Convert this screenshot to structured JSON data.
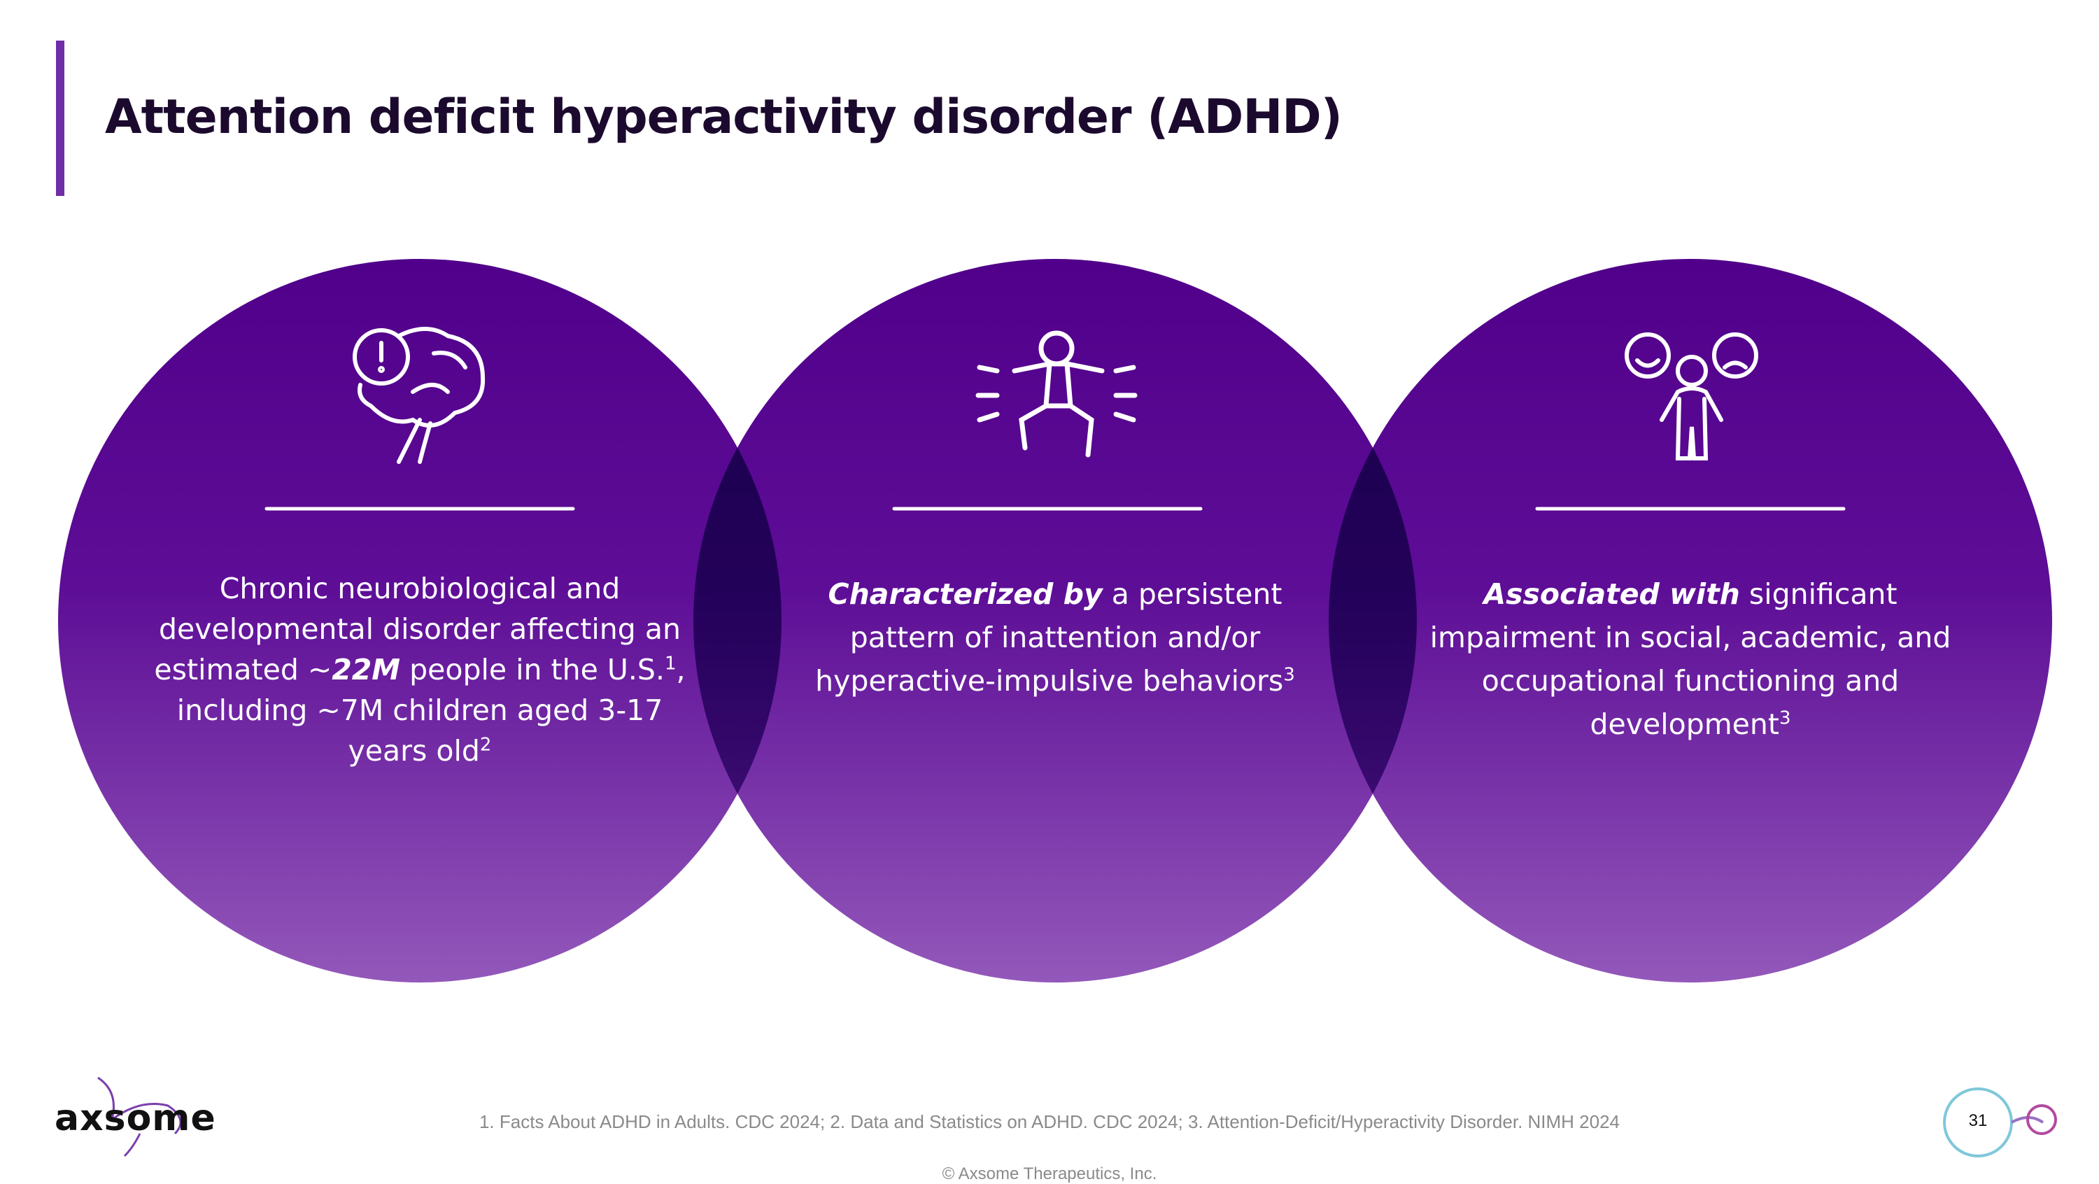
{
  "header": {
    "title": "Attention deficit hyperactivity disorder (ADHD)"
  },
  "circles": [
    {
      "segments": [
        {
          "text": "Chronic neurobiological and developmental disorder affecting an estimated ~"
        },
        {
          "text": "22M",
          "emphasis": true
        },
        {
          "text": " people in the U.S."
        },
        {
          "text": "1",
          "superscript": true
        },
        {
          "text": ", including ~7M children aged 3-17 years old"
        },
        {
          "text": "2",
          "superscript": true
        }
      ]
    },
    {
      "segments": [
        {
          "text": "Characterized by",
          "emphasis": true
        },
        {
          "text": " a persistent pattern of inattention and/or hyperactive-impulsive behaviors"
        },
        {
          "text": "3",
          "superscript": true
        }
      ]
    },
    {
      "segments": [
        {
          "text": "Associated with",
          "emphasis": true
        },
        {
          "text": " significant impairment in social, academic, and occupational functioning and development"
        },
        {
          "text": "3",
          "superscript": true
        }
      ]
    }
  ],
  "footer": {
    "logo": "axsome",
    "references": "1. Facts About ADHD in Adults. CDC 2024; 2. Data and Statistics on ADHD. CDC 2024; 3. Attention-Deficit/Hyperactivity Disorder. NIMH 2024",
    "copyright": "© Axsome Therapeutics, Inc.",
    "page_number": "31"
  }
}
